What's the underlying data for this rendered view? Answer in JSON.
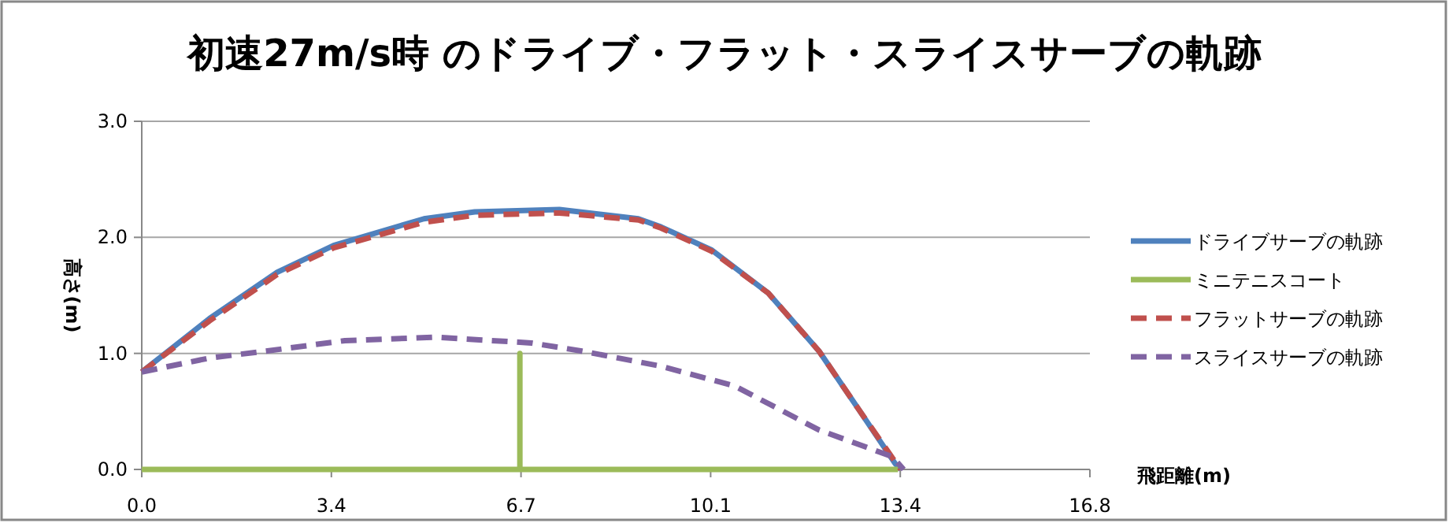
{
  "chart_data": {
    "type": "line",
    "title": "初速27m/s時 のドライブ・フラット・スライスサーブの軌跡",
    "xlabel": "飛距離(m)",
    "ylabel": "高さ(m)",
    "xlim": [
      0,
      16.8
    ],
    "ylim": [
      0,
      3
    ],
    "xticks": [
      {
        "value": 0,
        "label": "0.0"
      },
      {
        "value": 3.36,
        "label": "3.4"
      },
      {
        "value": 6.72,
        "label": "6.7"
      },
      {
        "value": 10.08,
        "label": "10.1"
      },
      {
        "value": 13.44,
        "label": "13.4"
      },
      {
        "value": 16.8,
        "label": "16.8"
      }
    ],
    "yticks": [
      {
        "value": 0,
        "label": "0.0"
      },
      {
        "value": 1,
        "label": "1.0"
      },
      {
        "value": 2,
        "label": "2.0"
      },
      {
        "value": 3,
        "label": "3.0"
      }
    ],
    "grid": "y",
    "legend": "right",
    "series": [
      {
        "name": "ドライブサーブの軌跡",
        "color": "#4f81bd",
        "line_style": "solid",
        "x": [
          0,
          1.2,
          2.4,
          3.4,
          5.0,
          5.9,
          7.4,
          8.8,
          9.2,
          10.1,
          11.1,
          12.0,
          12.7,
          13.35,
          13.45
        ],
        "values": [
          0.84,
          1.3,
          1.7,
          1.93,
          2.16,
          2.22,
          2.24,
          2.16,
          2.09,
          1.89,
          1.52,
          1.02,
          0.52,
          0.05,
          0
        ]
      },
      {
        "name": "ミニテニスコート",
        "color": "#9bbb59",
        "line_style": "solid",
        "x": [
          0,
          6.7,
          6.7,
          6.7,
          13.4
        ],
        "values": [
          0,
          0,
          1.0,
          0,
          0
        ]
      },
      {
        "name": "フラットサーブの軌跡",
        "color": "#c0504d",
        "line_style": "dashed",
        "x": [
          0,
          1.2,
          2.4,
          3.4,
          5.0,
          5.9,
          7.4,
          8.8,
          9.2,
          10.1,
          11.1,
          12.0,
          12.7,
          13.3,
          13.45
        ],
        "values": [
          0.84,
          1.28,
          1.68,
          1.91,
          2.13,
          2.19,
          2.21,
          2.15,
          2.08,
          1.88,
          1.52,
          1.02,
          0.52,
          0.1,
          0
        ]
      },
      {
        "name": "スライスサーブの軌跡",
        "color": "#8064a2",
        "line_style": "dashed",
        "x": [
          0,
          1.2,
          2.2,
          3.6,
          5.2,
          6.9,
          7.8,
          9.2,
          10.5,
          12.0,
          13.3,
          13.5
        ],
        "values": [
          0.84,
          0.96,
          1.02,
          1.11,
          1.14,
          1.09,
          1.02,
          0.89,
          0.72,
          0.34,
          0.11,
          0
        ]
      }
    ]
  }
}
